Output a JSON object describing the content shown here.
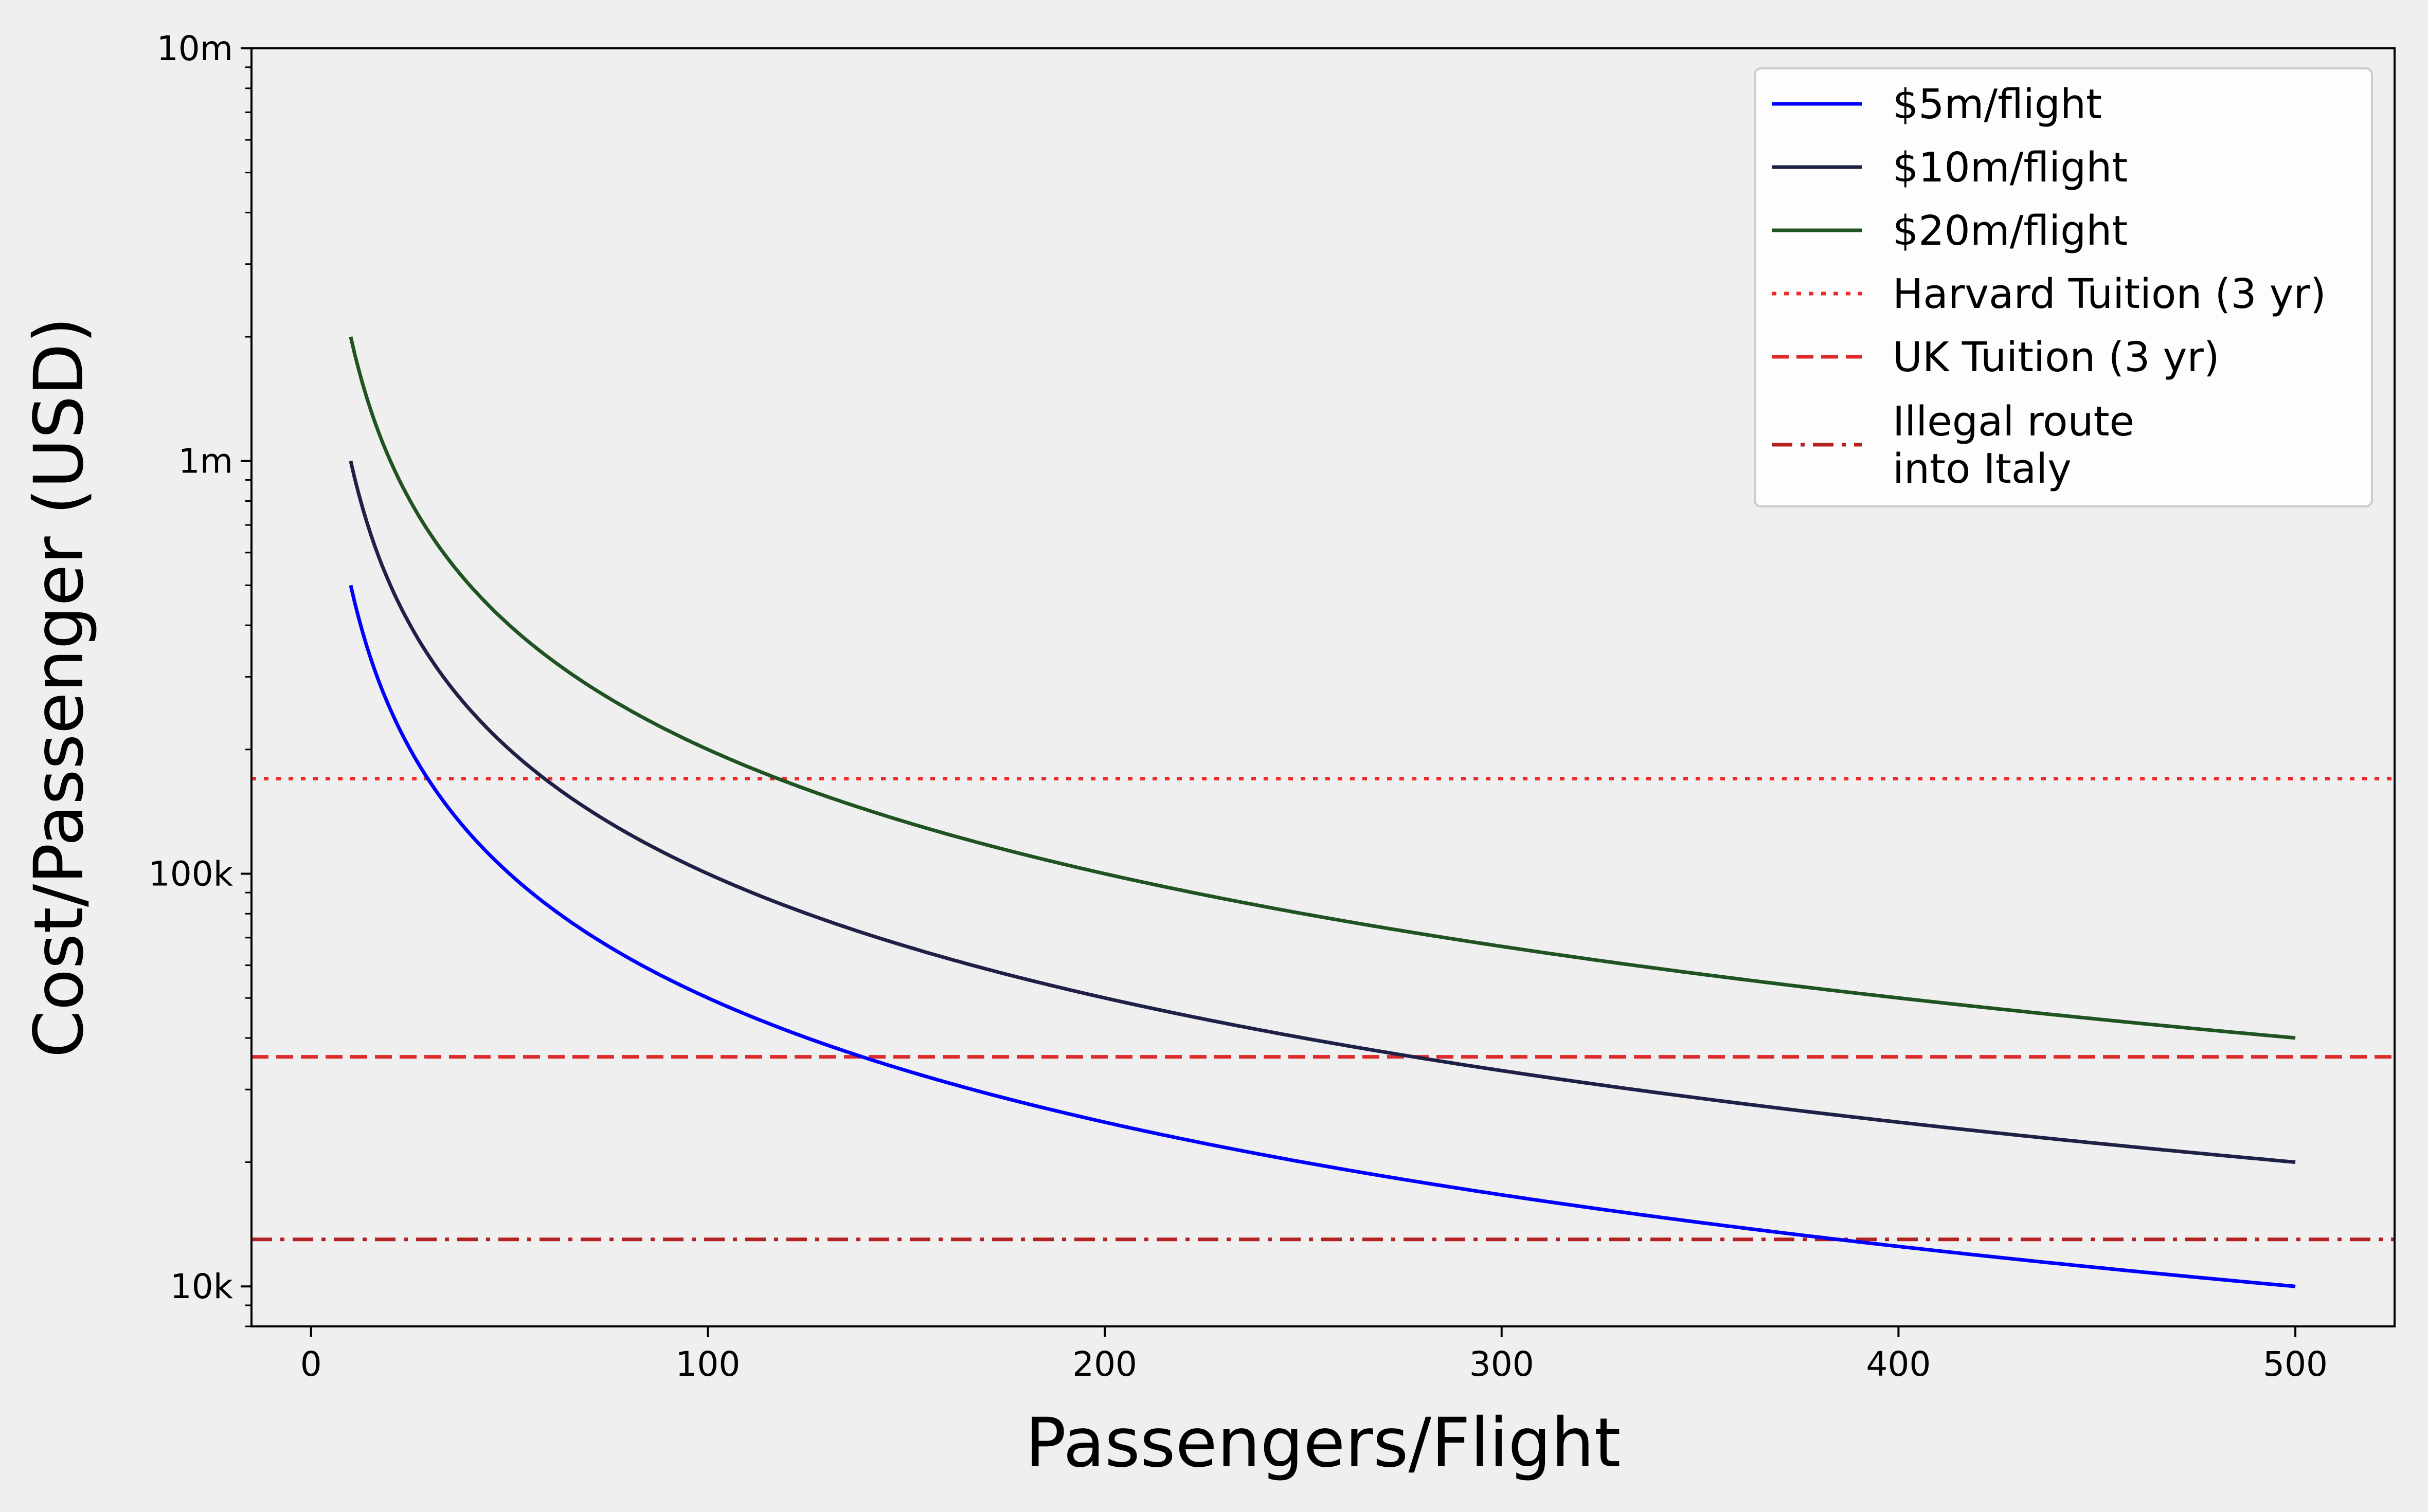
{
  "chart_data": {
    "type": "line",
    "xlabel": "Passengers/Flight",
    "ylabel": "Cost/Passenger (USD)",
    "xlim": [
      -15,
      525
    ],
    "ylim": [
      8000,
      10000000
    ],
    "yscale": "log",
    "grid": false,
    "legend_placement": "top-right",
    "x_ticks": [
      0,
      100,
      200,
      300,
      400,
      500
    ],
    "x_tick_labels": [
      "0",
      "100",
      "200",
      "300",
      "400",
      "500"
    ],
    "y_ticks": [
      10000,
      100000,
      1000000,
      10000000
    ],
    "y_tick_labels": [
      "10k",
      "100k",
      "1m",
      "10m"
    ],
    "x": [
      10,
      15,
      20,
      25,
      30,
      40,
      50,
      60,
      80,
      100,
      125,
      150,
      175,
      200,
      250,
      300,
      350,
      400,
      450,
      500
    ],
    "series": [
      {
        "name": "$5m/flight",
        "color": "#0000ff",
        "style": "solid",
        "values": [
          500000,
          333333,
          250000,
          200000,
          166667,
          125000,
          100000,
          83333,
          62500,
          50000,
          40000,
          33333,
          28571,
          25000,
          20000,
          16667,
          14286,
          12500,
          11111,
          10000
        ]
      },
      {
        "name": "$10m/flight",
        "color": "#1f2046",
        "style": "solid",
        "values": [
          1000000,
          666667,
          500000,
          400000,
          333333,
          250000,
          200000,
          166667,
          125000,
          100000,
          80000,
          66667,
          57143,
          50000,
          40000,
          33333,
          28571,
          25000,
          22222,
          20000
        ]
      },
      {
        "name": "$20m/flight",
        "color": "#1f5321",
        "style": "solid",
        "values": [
          2000000,
          1333333,
          1000000,
          800000,
          666667,
          500000,
          400000,
          333333,
          250000,
          200000,
          160000,
          133333,
          114286,
          100000,
          80000,
          66667,
          57143,
          50000,
          44444,
          40000
        ]
      }
    ],
    "reference_lines": [
      {
        "name": "Harvard Tuition (3 yr)",
        "value": 170000,
        "color": "#ee2a2a",
        "style": "dotted"
      },
      {
        "name": "UK Tuition (3 yr)",
        "value": 36000,
        "color": "#dd2a2a",
        "style": "dashed"
      },
      {
        "name": "Illegal route\ninto Italy",
        "value": 13000,
        "color": "#b22222",
        "style": "dashdot"
      }
    ]
  }
}
